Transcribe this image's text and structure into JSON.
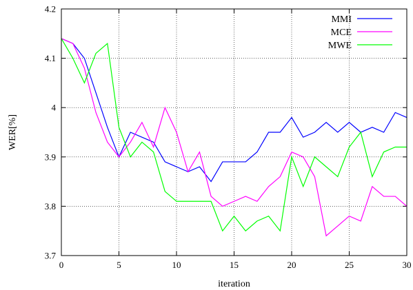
{
  "chart_data": {
    "type": "line",
    "xlabel": "iteration",
    "ylabel": "WER[%]",
    "xlim": [
      0,
      30
    ],
    "ylim": [
      3.7,
      4.2
    ],
    "xticks": [
      0,
      5,
      10,
      15,
      20,
      25,
      30
    ],
    "xtick_labels": [
      "0",
      "5",
      "10",
      "15",
      "20",
      "25",
      "30"
    ],
    "yticks": [
      3.7,
      3.8,
      3.9,
      4.0,
      4.1,
      4.2
    ],
    "ytick_labels": [
      "3.7",
      "3.8",
      "3.9",
      "4",
      "4.1",
      "4.2"
    ],
    "grid": true,
    "grid_style": "dotted",
    "legend_position": "top-right",
    "x": [
      0,
      1,
      2,
      3,
      4,
      5,
      6,
      7,
      8,
      9,
      10,
      11,
      12,
      13,
      14,
      15,
      16,
      17,
      18,
      19,
      20,
      21,
      22,
      23,
      24,
      25,
      26,
      27,
      28,
      29,
      30
    ],
    "series": [
      {
        "name": "MMI",
        "color": "#0000ff",
        "values": [
          4.14,
          4.13,
          4.1,
          4.03,
          3.96,
          3.9,
          3.95,
          3.94,
          3.93,
          3.89,
          3.88,
          3.87,
          3.88,
          3.85,
          3.89,
          3.89,
          3.89,
          3.91,
          3.95,
          3.95,
          3.98,
          3.94,
          3.95,
          3.97,
          3.95,
          3.97,
          3.95,
          3.96,
          3.95,
          3.99,
          3.98
        ]
      },
      {
        "name": "MCE",
        "color": "#ff00ff",
        "values": [
          4.14,
          4.13,
          4.08,
          3.99,
          3.93,
          3.9,
          3.93,
          3.97,
          3.92,
          4.0,
          3.95,
          3.87,
          3.91,
          3.82,
          3.8,
          3.81,
          3.82,
          3.81,
          3.84,
          3.86,
          3.91,
          3.9,
          3.86,
          3.74,
          3.76,
          3.78,
          3.77,
          3.84,
          3.82,
          3.82,
          3.8
        ]
      },
      {
        "name": "MWE",
        "color": "#00ff00",
        "values": [
          4.14,
          4.1,
          4.05,
          4.11,
          4.13,
          3.96,
          3.9,
          3.93,
          3.91,
          3.83,
          3.81,
          3.81,
          3.81,
          3.81,
          3.75,
          3.78,
          3.75,
          3.77,
          3.78,
          3.75,
          3.9,
          3.84,
          3.9,
          3.88,
          3.86,
          3.92,
          3.95,
          3.86,
          3.91,
          3.92,
          3.92
        ]
      }
    ]
  }
}
